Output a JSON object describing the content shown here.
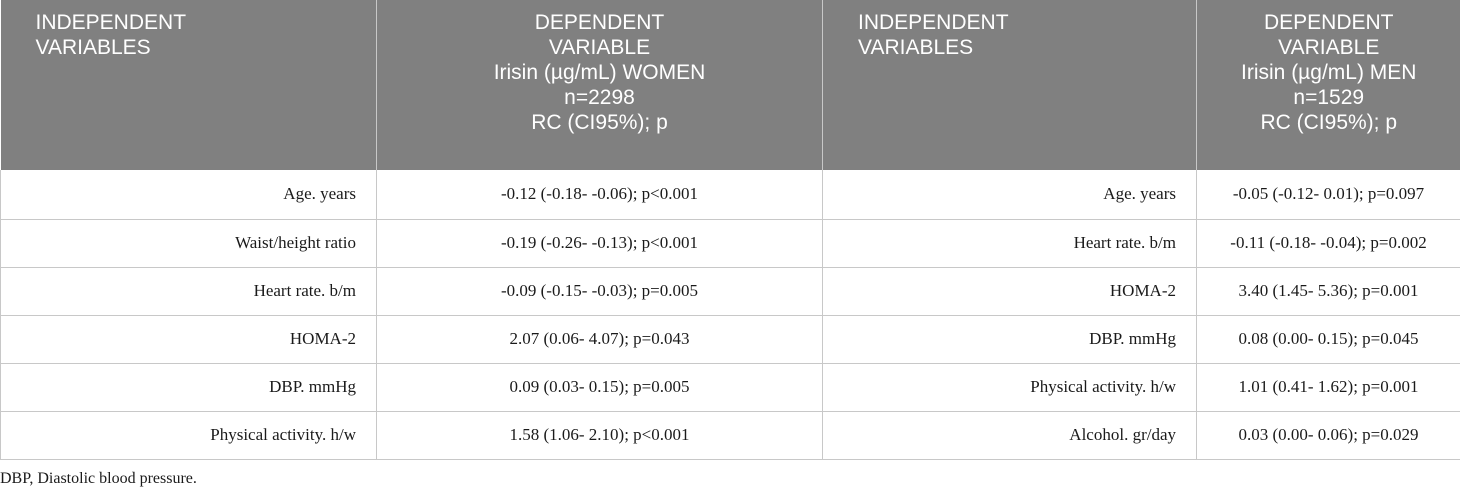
{
  "header": {
    "indep_lines": [
      "INDEPENDENT",
      "VARIABLES"
    ],
    "women": {
      "lines": [
        "DEPENDENT",
        "VARIABLE",
        "Irisin (µg/mL) WOMEN",
        "n=2298",
        "RC (CI95%); p"
      ]
    },
    "men": {
      "lines": [
        "DEPENDENT",
        "VARIABLE",
        "Irisin (µg/mL) MEN",
        "n=1529",
        "RC (CI95%); p"
      ]
    }
  },
  "rows": [
    {
      "women_var": "Age. years",
      "women_val": "-0.12 (-0.18- -0.06); p<0.001",
      "men_var": "Age. years",
      "men_val": "-0.05 (-0.12- 0.01); p=0.097"
    },
    {
      "women_var": "Waist/height ratio",
      "women_val": "-0.19 (-0.26- -0.13); p<0.001",
      "men_var": "Heart rate. b/m",
      "men_val": "-0.11 (-0.18- -0.04); p=0.002"
    },
    {
      "women_var": "Heart rate. b/m",
      "women_val": "-0.09 (-0.15- -0.03); p=0.005",
      "men_var": "HOMA-2",
      "men_val": "3.40 (1.45- 5.36); p=0.001"
    },
    {
      "women_var": "HOMA-2",
      "women_val": "2.07 (0.06- 4.07); p=0.043",
      "men_var": "DBP. mmHg",
      "men_val": "0.08 (0.00- 0.15); p=0.045"
    },
    {
      "women_var": "DBP. mmHg",
      "women_val": "0.09 (0.03- 0.15); p=0.005",
      "men_var": "Physical activity. h/w",
      "men_val": "1.01 (0.41- 1.62); p=0.001"
    },
    {
      "women_var": "Physical activity. h/w",
      "women_val": "1.58 (1.06- 2.10); p<0.001",
      "men_var": "Alcohol. gr/day",
      "men_val": "0.03 (0.00- 0.06); p=0.029"
    }
  ],
  "footnote": "DBP, Diastolic blood pressure."
}
